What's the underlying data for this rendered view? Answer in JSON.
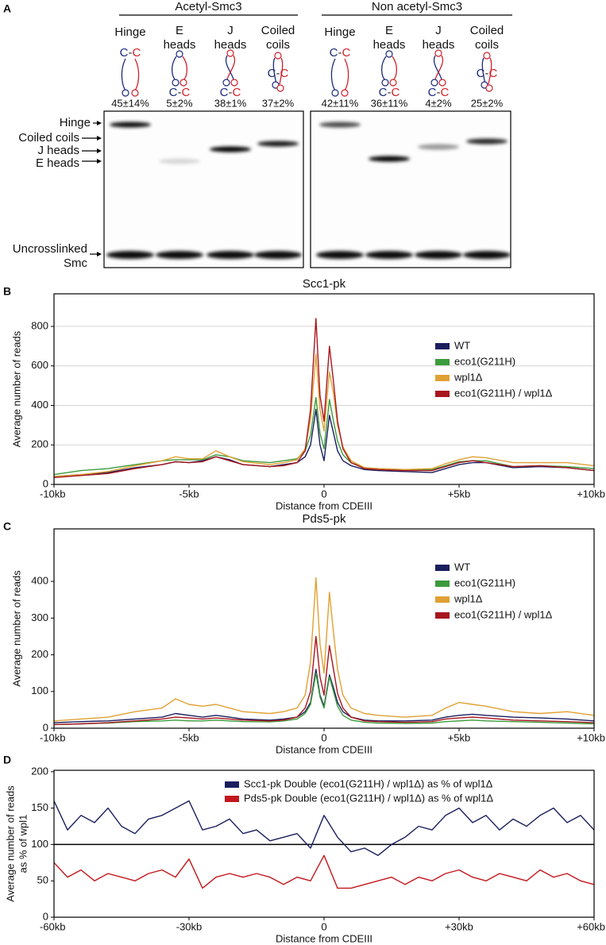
{
  "gel": {
    "panel": "A",
    "groups": [
      {
        "label": "Acetyl-Smc3",
        "lanes": [
          {
            "label": [
              "Hinge"
            ],
            "percent": "45±14%"
          },
          {
            "label": [
              "E",
              "heads"
            ],
            "percent": "5±2%"
          },
          {
            "label": [
              "J",
              "heads"
            ],
            "percent": "38±1%"
          },
          {
            "label": [
              "Coiled",
              "coils"
            ],
            "percent": "37±2%"
          }
        ]
      },
      {
        "label": "Non acetyl-Smc3",
        "lanes": [
          {
            "label": [
              "Hinge"
            ],
            "percent": "42±11%"
          },
          {
            "label": [
              "E",
              "heads"
            ],
            "percent": "36±11%"
          },
          {
            "label": [
              "J",
              "heads"
            ],
            "percent": "4±2%"
          },
          {
            "label": [
              "Coiled",
              "coils"
            ],
            "percent": "25±2%"
          }
        ]
      }
    ],
    "band_labels": [
      [
        "Hinge"
      ],
      [
        "Coiled coils"
      ],
      [
        "J heads"
      ],
      [
        "E heads"
      ],
      [
        "Uncrosslinked",
        "Smc"
      ]
    ],
    "cartoon_text": [
      "C",
      "-",
      "C"
    ]
  },
  "chart_data": [
    {
      "type": "line",
      "panel": "B",
      "title": "Scc1-pk",
      "x_label": "Distance from CDEIII",
      "y_label": [
        "Average number of reads"
      ],
      "x": [
        -10,
        -9,
        -8,
        -7,
        -6,
        -5.5,
        -5,
        -4.5,
        -4,
        -3.5,
        -3,
        -2,
        -1.5,
        -1,
        -0.7,
        -0.5,
        -0.3,
        -0.15,
        0,
        0.2,
        0.35,
        0.5,
        0.7,
        1,
        1.5,
        2,
        3,
        4,
        4.5,
        5,
        5.5,
        6,
        7,
        8,
        9,
        10
      ],
      "series": [
        {
          "name": "WT",
          "color": "#1b1f5e",
          "values": [
            40,
            50,
            60,
            85,
            100,
            115,
            110,
            120,
            140,
            125,
            100,
            90,
            100,
            110,
            140,
            200,
            380,
            200,
            120,
            350,
            260,
            170,
            120,
            95,
            75,
            70,
            65,
            60,
            80,
            100,
            110,
            110,
            85,
            90,
            85,
            70
          ]
        },
        {
          "name": "eco1(G211H)",
          "color": "#3c9b3c",
          "values": [
            50,
            70,
            80,
            100,
            120,
            125,
            125,
            125,
            150,
            140,
            120,
            110,
            120,
            130,
            170,
            250,
            440,
            260,
            180,
            430,
            320,
            220,
            150,
            110,
            85,
            80,
            75,
            75,
            95,
            115,
            120,
            120,
            90,
            95,
            90,
            80
          ]
        },
        {
          "name": "wpl1Δ",
          "color": "#e0a133",
          "values": [
            40,
            50,
            65,
            95,
            120,
            140,
            130,
            130,
            170,
            140,
            115,
            100,
            110,
            125,
            180,
            330,
            660,
            380,
            270,
            570,
            460,
            300,
            190,
            120,
            85,
            80,
            75,
            80,
            105,
            125,
            140,
            135,
            110,
            110,
            110,
            95
          ]
        },
        {
          "name": "eco1(G211H) / wpl1Δ",
          "color": "#a8161e",
          "values": [
            35,
            45,
            55,
            80,
            100,
            115,
            110,
            115,
            140,
            120,
            100,
            90,
            95,
            110,
            170,
            380,
            840,
            450,
            320,
            700,
            520,
            320,
            180,
            110,
            80,
            75,
            70,
            70,
            90,
            110,
            120,
            110,
            90,
            95,
            85,
            70
          ]
        }
      ],
      "xlim": [
        -10,
        10
      ],
      "xticks": [
        {
          "value": -10,
          "label": "-10kb"
        },
        {
          "value": -5,
          "label": "-5kb"
        },
        0,
        {
          "value": 5,
          "label": "+5kb"
        },
        {
          "value": 10,
          "label": "+10kb"
        }
      ],
      "ylim": [
        0,
        965
      ],
      "yticks": [
        0,
        200,
        400,
        600,
        800
      ],
      "grid": true,
      "legend": "upper right"
    },
    {
      "type": "line",
      "panel": "C",
      "title": "Pds5-pk",
      "x_label": "Distance from CDEIII",
      "y_label": [
        "Average number of reads"
      ],
      "x": [
        -10,
        -9,
        -8,
        -7,
        -6,
        -5.5,
        -5,
        -4.5,
        -4,
        -3.5,
        -3,
        -2,
        -1.5,
        -1,
        -0.7,
        -0.5,
        -0.3,
        -0.15,
        0,
        0.2,
        0.35,
        0.5,
        0.7,
        1,
        1.5,
        2,
        3,
        4,
        4.5,
        5,
        5.5,
        6,
        7,
        8,
        9,
        10
      ],
      "series": [
        {
          "name": "WT",
          "color": "#1b1f5e",
          "values": [
            15,
            18,
            20,
            25,
            30,
            40,
            35,
            30,
            35,
            30,
            25,
            22,
            25,
            30,
            45,
            70,
            160,
            90,
            60,
            145,
            110,
            70,
            45,
            30,
            22,
            20,
            20,
            22,
            30,
            35,
            38,
            35,
            30,
            28,
            25,
            20
          ]
        },
        {
          "name": "eco1(G211H)",
          "color": "#3c9b3c",
          "values": [
            10,
            12,
            14,
            18,
            20,
            22,
            20,
            20,
            22,
            20,
            18,
            17,
            20,
            25,
            40,
            65,
            150,
            85,
            55,
            140,
            100,
            60,
            35,
            22,
            16,
            14,
            13,
            14,
            18,
            20,
            22,
            20,
            18,
            16,
            14,
            12
          ]
        },
        {
          "name": "wpl1Δ",
          "color": "#e0a133",
          "values": [
            20,
            25,
            30,
            45,
            55,
            80,
            65,
            60,
            65,
            55,
            45,
            40,
            45,
            55,
            90,
            180,
            410,
            230,
            150,
            370,
            260,
            160,
            90,
            55,
            40,
            35,
            30,
            35,
            55,
            70,
            65,
            60,
            45,
            40,
            45,
            35
          ]
        },
        {
          "name": "eco1(G211H) / wpl1Δ",
          "color": "#a8161e",
          "values": [
            10,
            12,
            15,
            20,
            25,
            30,
            28,
            25,
            28,
            25,
            22,
            20,
            22,
            30,
            55,
            100,
            250,
            140,
            90,
            225,
            160,
            95,
            55,
            30,
            20,
            18,
            16,
            18,
            25,
            28,
            30,
            28,
            22,
            20,
            18,
            15
          ]
        }
      ],
      "xlim": [
        -10,
        10
      ],
      "xticks": [
        {
          "value": -10,
          "label": "-10kb"
        },
        {
          "value": -5,
          "label": "-5kb"
        },
        0,
        {
          "value": 5,
          "label": "+5kb"
        },
        {
          "value": 10,
          "label": "+10kb"
        }
      ],
      "ylim": [
        0,
        543
      ],
      "yticks": [
        0,
        100,
        200,
        300,
        400
      ],
      "grid": false,
      "legend": "upper right"
    },
    {
      "type": "line",
      "panel": "D",
      "x_label": "Distance from CDEIII",
      "y_label": [
        "Average number of reads",
        "as % of wpl1"
      ],
      "x": [
        -60,
        -57,
        -54,
        -51,
        -48,
        -45,
        -42,
        -39,
        -36,
        -33,
        -30,
        -27,
        -24,
        -21,
        -18,
        -15,
        -12,
        -9,
        -6,
        -3,
        0,
        3,
        6,
        9,
        12,
        15,
        18,
        21,
        24,
        27,
        30,
        33,
        36,
        39,
        42,
        45,
        48,
        51,
        54,
        57,
        60
      ],
      "series": [
        {
          "name": "Scc1-pk Double (eco1(G211H) / wpl1Δ) as % of wpl1Δ",
          "color": "#1b1f5e",
          "values": [
            160,
            120,
            140,
            130,
            150,
            125,
            115,
            135,
            140,
            150,
            160,
            120,
            125,
            135,
            115,
            120,
            105,
            110,
            115,
            95,
            140,
            110,
            90,
            95,
            85,
            100,
            110,
            125,
            120,
            140,
            150,
            130,
            140,
            120,
            135,
            125,
            140,
            150,
            130,
            140,
            120
          ]
        },
        {
          "name": "Pds5-pk Double (eco1(G211H) / wpl1Δ) as % of wpl1Δ",
          "color": "#c4161c",
          "values": [
            75,
            55,
            65,
            50,
            60,
            55,
            50,
            60,
            65,
            55,
            80,
            40,
            55,
            60,
            55,
            60,
            55,
            45,
            55,
            50,
            85,
            40,
            40,
            45,
            50,
            55,
            45,
            55,
            50,
            60,
            65,
            55,
            50,
            60,
            55,
            50,
            65,
            55,
            60,
            50,
            45
          ]
        }
      ],
      "xlim": [
        -60,
        60
      ],
      "xticks": [
        {
          "value": -60,
          "label": "-60kb"
        },
        {
          "value": -30,
          "label": "-30kb"
        },
        0,
        {
          "value": 30,
          "label": "+30kb"
        },
        {
          "value": 60,
          "label": "+60kb"
        }
      ],
      "ylim": [
        0,
        202
      ],
      "yticks": [
        0,
        50,
        100,
        150,
        200
      ],
      "reference_line": 100,
      "grid": false,
      "legend": "upper center"
    }
  ]
}
